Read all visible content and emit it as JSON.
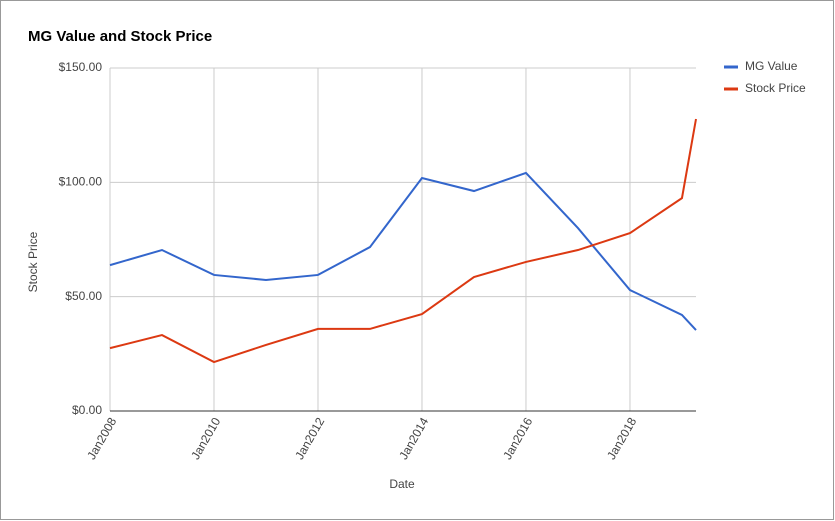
{
  "chart_data": {
    "type": "line",
    "title": "MG Value and Stock Price",
    "x_label": "Date",
    "y_label": "Stock Price",
    "x": [
      2008,
      2009,
      2010,
      2011,
      2012,
      2013,
      2014,
      2015,
      2016,
      2017,
      2018,
      2019,
      2019.27
    ],
    "series": [
      {
        "name": "MG Value",
        "color": "#3366cc",
        "values": [
          63.8,
          70.4,
          59.5,
          57.3,
          59.5,
          71.7,
          101.9,
          96.2,
          104.1,
          80,
          52.9,
          42,
          35.4
        ]
      },
      {
        "name": "Stock Price",
        "color": "#dc3912",
        "values": [
          27.5,
          33.2,
          21.4,
          28.9,
          35.9,
          35.9,
          42.4,
          58.6,
          65.2,
          70.4,
          77.8,
          93.1,
          127.7
        ]
      }
    ],
    "xlim": [
      2008,
      2019.27
    ],
    "xticks": [
      {
        "value": 2008,
        "label": "Jan2008"
      },
      {
        "value": 2010,
        "label": "Jan2010"
      },
      {
        "value": 2012,
        "label": "Jan2012"
      },
      {
        "value": 2014,
        "label": "Jan2014"
      },
      {
        "value": 2016,
        "label": "Jan2016"
      },
      {
        "value": 2018,
        "label": "Jan2018"
      }
    ],
    "ylim": [
      0,
      150
    ],
    "yticks": [
      {
        "value": 0,
        "label": "$0.00"
      },
      {
        "value": 50,
        "label": "$50.00"
      },
      {
        "value": 100,
        "label": "$100.00"
      },
      {
        "value": 150,
        "label": "$150.00"
      }
    ],
    "grid": true,
    "legend": "right"
  }
}
